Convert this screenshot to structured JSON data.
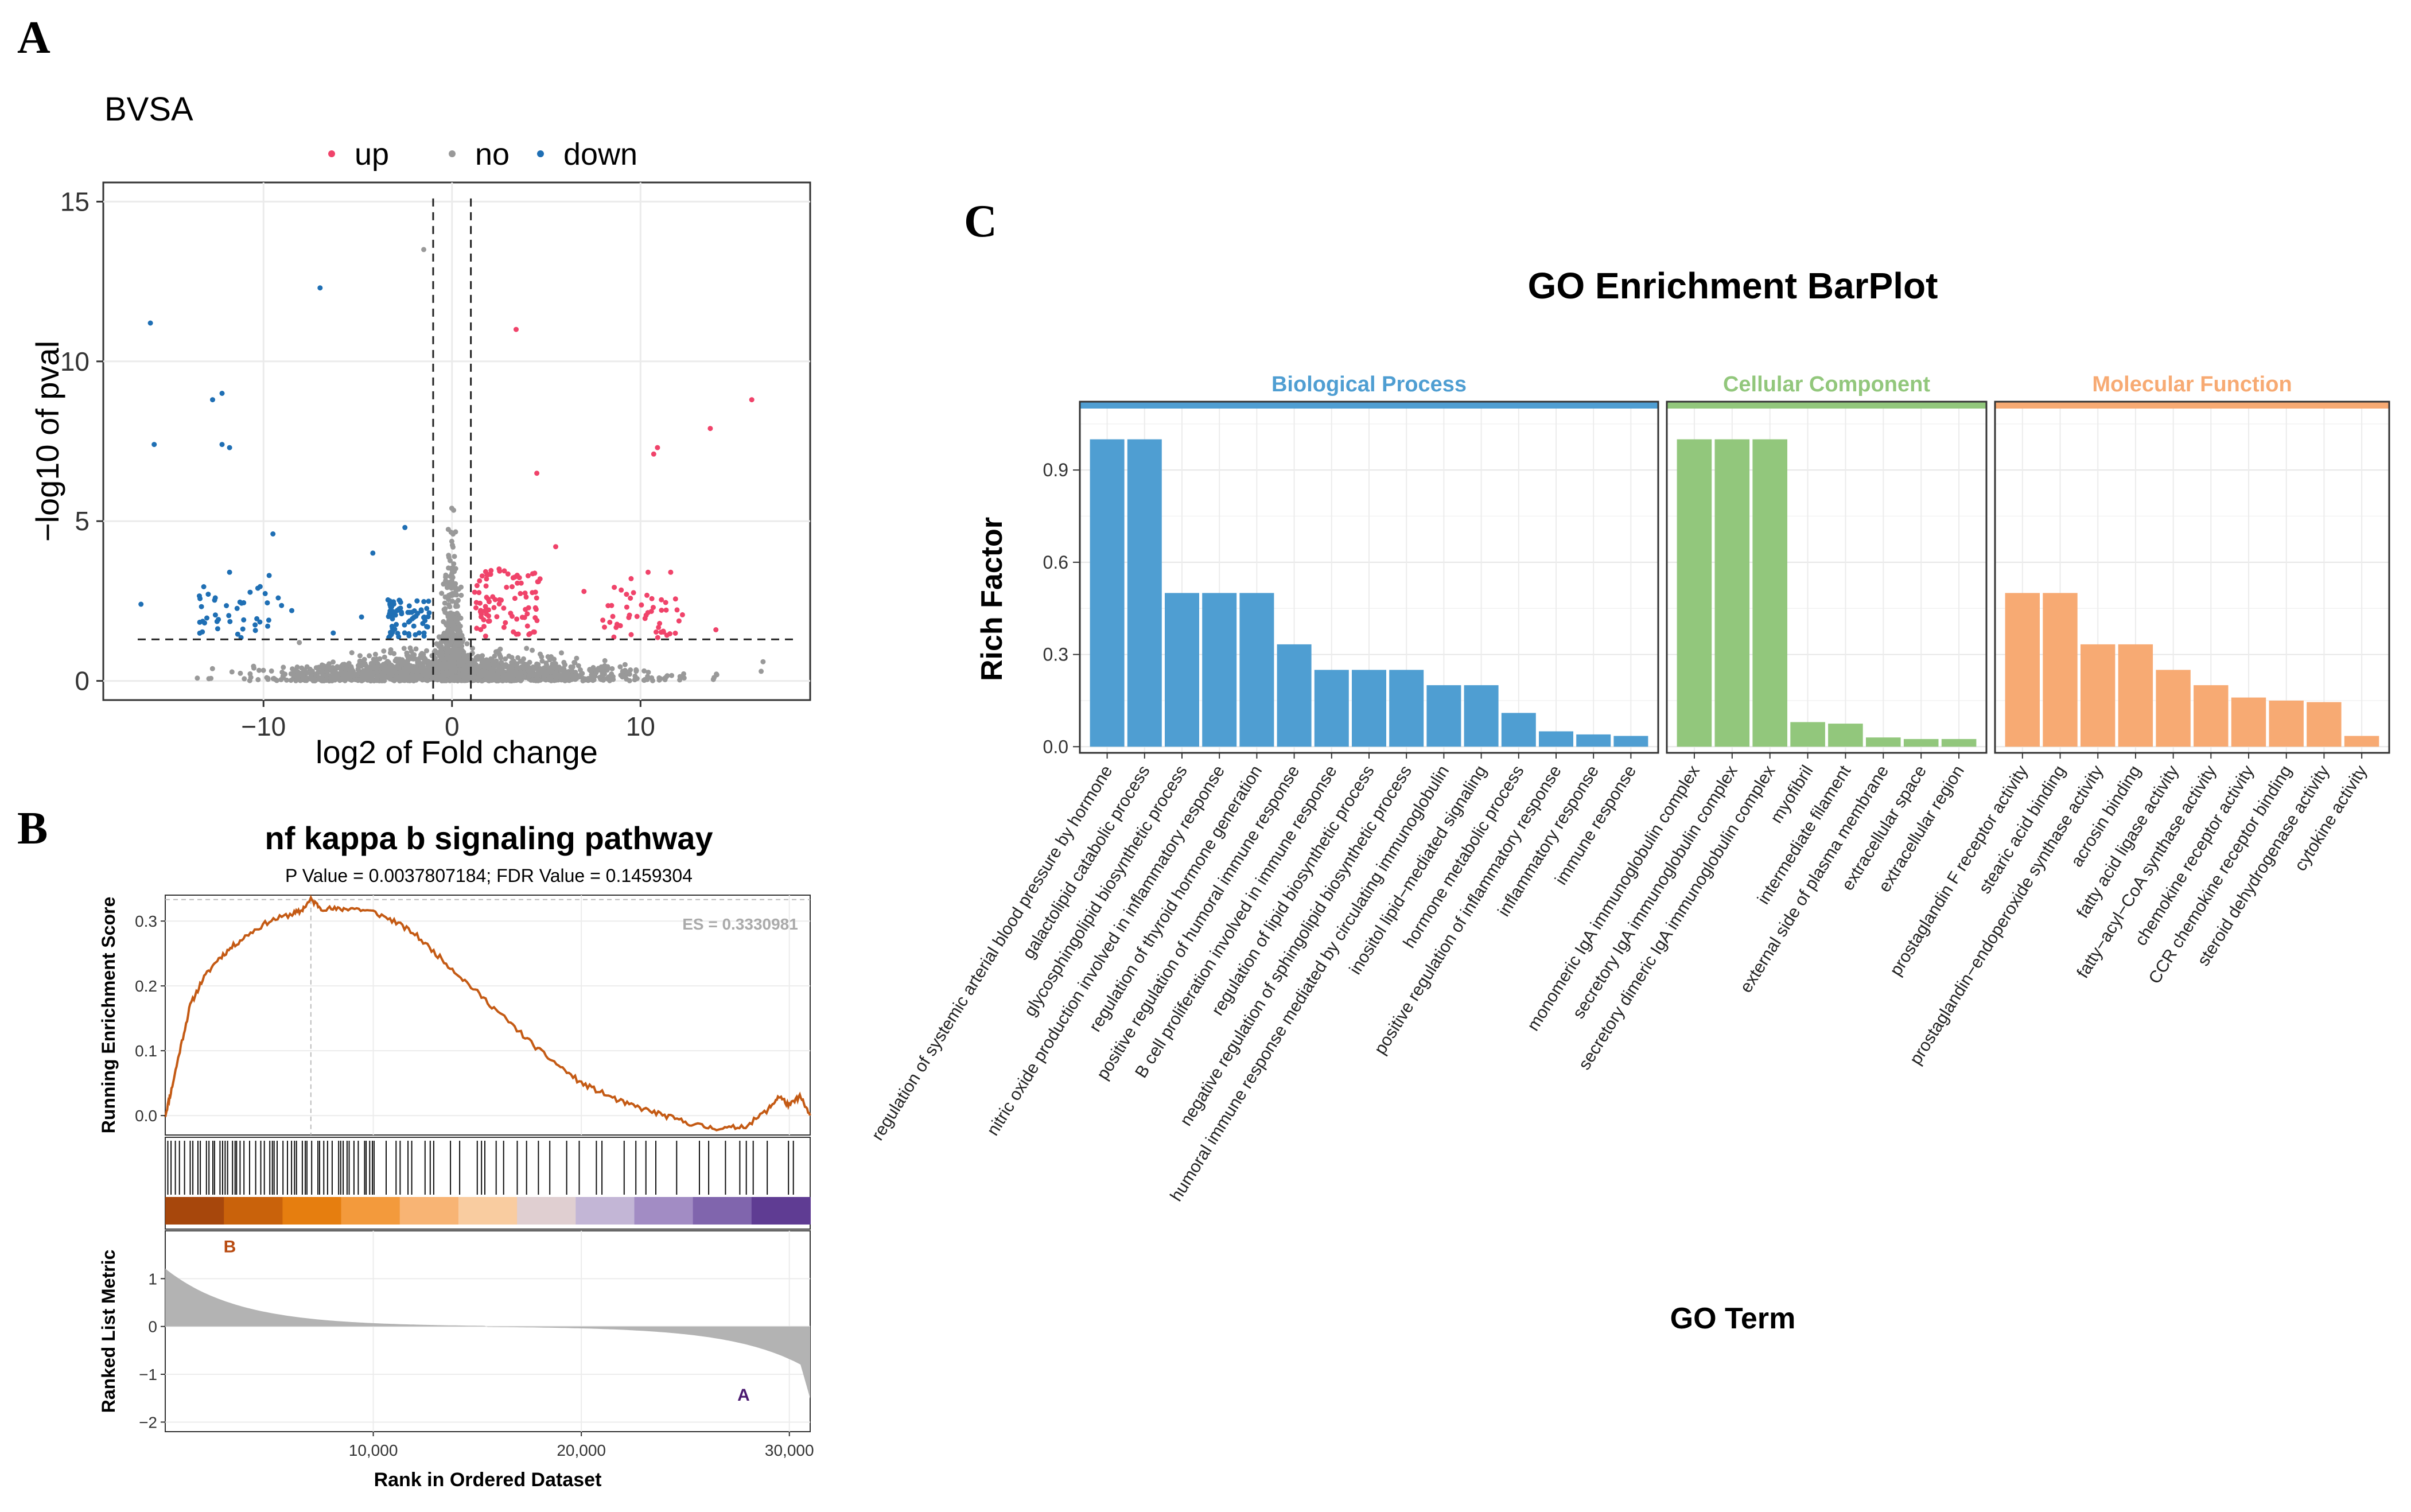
{
  "panels": {
    "a": "A",
    "b": "B",
    "c": "C"
  },
  "volcano": {
    "title": "BVSA",
    "legend": [
      {
        "label": "up",
        "color": "#f0436a"
      },
      {
        "label": "no",
        "color": "#999999"
      },
      {
        "label": "down",
        "color": "#1f6fb4"
      }
    ],
    "xlabel": "log2 of Fold change",
    "ylabel": "−log10 of pval",
    "xlim": [
      -18.5,
      19
    ],
    "ylim": [
      -0.6,
      15.6
    ],
    "xticks": [
      -10,
      0,
      10
    ],
    "yticks": [
      0,
      5,
      10,
      15
    ],
    "fc_threshold": [
      -1,
      1
    ],
    "p_threshold": 1.3,
    "outliers_down": [
      [
        -16,
        11.2
      ],
      [
        -7,
        12.3
      ],
      [
        -12.7,
        8.8
      ],
      [
        -12.2,
        9.0
      ],
      [
        -12.2,
        7.4
      ],
      [
        -11.8,
        7.3
      ],
      [
        -15.8,
        7.4
      ],
      [
        -9.5,
        4.6
      ],
      [
        -4.2,
        4.0
      ],
      [
        -2.5,
        4.8
      ],
      [
        -16.5,
        2.4
      ],
      [
        -11.8,
        3.4
      ],
      [
        -10.3,
        2.9
      ],
      [
        -9.7,
        3.3
      ],
      [
        -8.5,
        2.2
      ],
      [
        -6.3,
        1.5
      ],
      [
        -4.8,
        2.0
      ]
    ],
    "outliers_up": [
      [
        15.9,
        8.8
      ],
      [
        13.7,
        7.9
      ],
      [
        10.7,
        7.1
      ],
      [
        10.9,
        7.3
      ],
      [
        3.4,
        11.0
      ],
      [
        4.5,
        6.5
      ],
      [
        8.0,
        1.9
      ],
      [
        9.5,
        3.2
      ],
      [
        10.4,
        3.4
      ],
      [
        11.6,
        3.4
      ],
      [
        14.0,
        1.6
      ],
      [
        7.0,
        2.8
      ],
      [
        5.5,
        4.2
      ]
    ],
    "outliers_no": [
      [
        -1.5,
        13.5
      ],
      [
        16.5,
        0.6
      ],
      [
        16.4,
        0.3
      ],
      [
        -8.1,
        1.2
      ]
    ]
  },
  "gsea": {
    "title": "nf kappa b signaling pathway",
    "subtitle": "P Value = 0.0037807184; FDR Value = 0.1459304",
    "es_label": "ES = 0.3330981",
    "es": 0.3330981,
    "peak_rank": 7000,
    "ylabel_top": "Running Enrichment Score",
    "ylabel_bottom": "Ranked List Metric",
    "xlabel": "Rank in Ordered Dataset",
    "n_genes": 31000,
    "xticks": [
      10000,
      20000,
      30000
    ],
    "xtick_labels": [
      "10,000",
      "20,000",
      "30,000"
    ],
    "es_ylim": [
      -0.03,
      0.34
    ],
    "es_yticks": [
      0.0,
      0.1,
      0.2,
      0.3
    ],
    "es_ytick_labels": [
      "0.0",
      "0.1",
      "0.2",
      "0.3"
    ],
    "metric_ylim": [
      -2.2,
      2.0
    ],
    "metric_yticks": [
      1,
      0,
      -1,
      -2
    ],
    "metric_label_pos": "B",
    "metric_label_neg": "A",
    "curve": [
      [
        0,
        0.0
      ],
      [
        300,
        0.04
      ],
      [
        700,
        0.1
      ],
      [
        1200,
        0.17
      ],
      [
        1800,
        0.21
      ],
      [
        2500,
        0.24
      ],
      [
        3200,
        0.26
      ],
      [
        4000,
        0.28
      ],
      [
        5000,
        0.3
      ],
      [
        6000,
        0.31
      ],
      [
        6500,
        0.315
      ],
      [
        7000,
        0.333
      ],
      [
        7500,
        0.32
      ],
      [
        8300,
        0.318
      ],
      [
        9000,
        0.32
      ],
      [
        10000,
        0.314
      ],
      [
        11000,
        0.3
      ],
      [
        12000,
        0.28
      ],
      [
        13000,
        0.25
      ],
      [
        14000,
        0.22
      ],
      [
        15000,
        0.19
      ],
      [
        16000,
        0.16
      ],
      [
        17000,
        0.13
      ],
      [
        18000,
        0.1
      ],
      [
        19000,
        0.075
      ],
      [
        20000,
        0.05
      ],
      [
        21000,
        0.035
      ],
      [
        22000,
        0.02
      ],
      [
        23000,
        0.01
      ],
      [
        24000,
        0.0
      ],
      [
        25000,
        -0.01
      ],
      [
        26000,
        -0.018
      ],
      [
        27000,
        -0.02
      ],
      [
        28000,
        -0.015
      ],
      [
        29000,
        0.01
      ],
      [
        29500,
        0.03
      ],
      [
        30000,
        0.015
      ],
      [
        30500,
        0.03
      ],
      [
        31000,
        0.0
      ]
    ]
  },
  "go": {
    "title": "GO Enrichment BarPlot",
    "ylabel": "Rich Factor",
    "xlabel": "GO Term",
    "ylim": [
      -0.02,
      1.1
    ],
    "yticks": [
      0.0,
      0.3,
      0.6,
      0.9
    ],
    "ytick_labels": [
      "0.0",
      "0.3",
      "0.6",
      "0.9"
    ],
    "facets": [
      {
        "name": "Biological Process",
        "color": "#4f9ed2",
        "stroke": "#2f7fb8",
        "terms": [
          "regulation of systemic arterial blood pressure by hormone",
          "galactolipid catabolic process",
          "glycosphingolipid biosynthetic process",
          "nitric oxide production involved in inflammatory response",
          "regulation of thyroid hormone generation",
          "positive regulation of humoral immune response",
          "B cell proliferation involved in immune response",
          "regulation of lipid biosynthetic process",
          "negative regulation of sphingolipid biosynthetic process",
          "humoral immune response mediated by circulating immunoglobulin",
          "inositol lipid−mediated signaling",
          "hormone metabolic process",
          "positive regulation of inflammatory response",
          "inflammatory response",
          "immune response"
        ],
        "values": [
          1.0,
          1.0,
          0.5,
          0.5,
          0.5,
          0.333,
          0.25,
          0.25,
          0.25,
          0.2,
          0.2,
          0.11,
          0.05,
          0.04,
          0.035
        ]
      },
      {
        "name": "Cellular Component",
        "color": "#92c77c",
        "stroke": "#6fae55",
        "terms": [
          "monomeric IgA immunoglobulin complex",
          "secretory IgA immunoglobulin complex",
          "secretory dimeric IgA immunoglobulin complex",
          "myofibril",
          "intermediate filament",
          "external side of plasma membrane",
          "extracellular space",
          "extracellular region"
        ],
        "values": [
          1.0,
          1.0,
          1.0,
          0.08,
          0.075,
          0.03,
          0.025,
          0.025
        ]
      },
      {
        "name": "Molecular Function",
        "color": "#f7aa73",
        "stroke": "#ee8a46",
        "terms": [
          "prostaglandin F receptor activity",
          "stearic acid binding",
          "prostaglandin−endoperoxide synthase activity",
          "acrosin binding",
          "fatty acid ligase activity",
          "fatty−acyl−CoA synthase activity",
          "chemokine receptor activity",
          "CCR chemokine receptor binding",
          "steroid dehydrogenase activity",
          "cytokine activity"
        ],
        "values": [
          0.5,
          0.5,
          0.333,
          0.333,
          0.25,
          0.2,
          0.16,
          0.15,
          0.145,
          0.035
        ]
      }
    ]
  }
}
